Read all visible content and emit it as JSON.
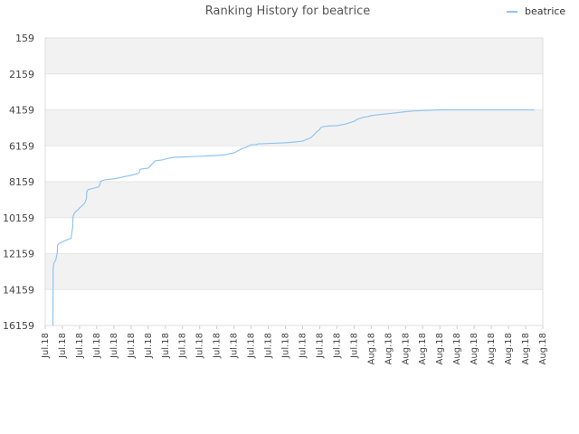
{
  "chart_data": {
    "type": "line",
    "title": "Ranking History for beatrice",
    "xlabel": "",
    "ylabel": "",
    "y_inverted": true,
    "ylim": [
      159,
      16159
    ],
    "yticks": [
      159,
      2159,
      4159,
      6159,
      8159,
      10159,
      12159,
      14159,
      16159
    ],
    "xlim": [
      0,
      29
    ],
    "xtick_labels": [
      "Jul.18",
      "Jul.18",
      "Jul.18",
      "Jul.18",
      "Jul.18",
      "Jul.18",
      "Jul.18",
      "Jul.18",
      "Jul.18",
      "Jul.18",
      "Jul.18",
      "Jul.18",
      "Jul.18",
      "Jul.18",
      "Jul.18",
      "Jul.18",
      "Jul.18",
      "Jul.18",
      "Jul.18",
      "Aug.18",
      "Aug.18",
      "Aug.18",
      "Aug.18",
      "Aug.18",
      "Aug.18",
      "Aug.18",
      "Aug.18",
      "Aug.18",
      "Aug.18",
      "Aug.18"
    ],
    "grid": true,
    "legend_position": "top-right",
    "colors": {
      "line": "#90c4f0",
      "band": "#f2f2f2",
      "grid": "#e6e6e6",
      "axis": "#cccccc"
    },
    "series": [
      {
        "name": "beatrice",
        "x": [
          0.45,
          0.46,
          0.5,
          0.62,
          0.7,
          0.72,
          0.8,
          1.0,
          1.5,
          1.6,
          1.62,
          1.7,
          2.3,
          2.4,
          2.42,
          2.5,
          3.1,
          3.2,
          3.22,
          3.3,
          3.5,
          4.0,
          4.5,
          5.0,
          5.4,
          5.5,
          5.52,
          5.6,
          6.0,
          6.1,
          6.3,
          6.4,
          6.8,
          7.2,
          7.5,
          8.0,
          8.5,
          9.0,
          9.5,
          10.0,
          10.5,
          11.0,
          11.3,
          11.5,
          11.7,
          12.0,
          12.3,
          12.4,
          12.5,
          13.0,
          13.5,
          14.0,
          14.5,
          15.0,
          15.5,
          15.8,
          16.0,
          16.05,
          16.2,
          16.3,
          16.5,
          17.0,
          17.5,
          18.0,
          18.2,
          18.4,
          18.5,
          18.8,
          19.0,
          19.5,
          20.0,
          20.5,
          21.0,
          21.5,
          22.0,
          22.5,
          23.0,
          24.0,
          25.0,
          26.0,
          27.0,
          28.0,
          28.5
        ],
        "y": [
          16159,
          13000,
          12700,
          12500,
          12100,
          11700,
          11600,
          11500,
          11300,
          10700,
          10100,
          9900,
          9350,
          9100,
          8700,
          8600,
          8450,
          8300,
          8150,
          8100,
          8050,
          8000,
          7900,
          7800,
          7700,
          7600,
          7500,
          7450,
          7400,
          7300,
          7100,
          7000,
          6950,
          6850,
          6800,
          6780,
          6760,
          6740,
          6720,
          6700,
          6650,
          6550,
          6400,
          6300,
          6250,
          6100,
          6100,
          6050,
          6050,
          6030,
          6010,
          5990,
          5950,
          5900,
          5700,
          5400,
          5250,
          5150,
          5100,
          5080,
          5060,
          5040,
          4950,
          4800,
          4680,
          4620,
          4580,
          4540,
          4480,
          4420,
          4370,
          4320,
          4260,
          4220,
          4200,
          4180,
          4159,
          4159,
          4159,
          4159,
          4159,
          4159,
          4159
        ]
      }
    ]
  }
}
